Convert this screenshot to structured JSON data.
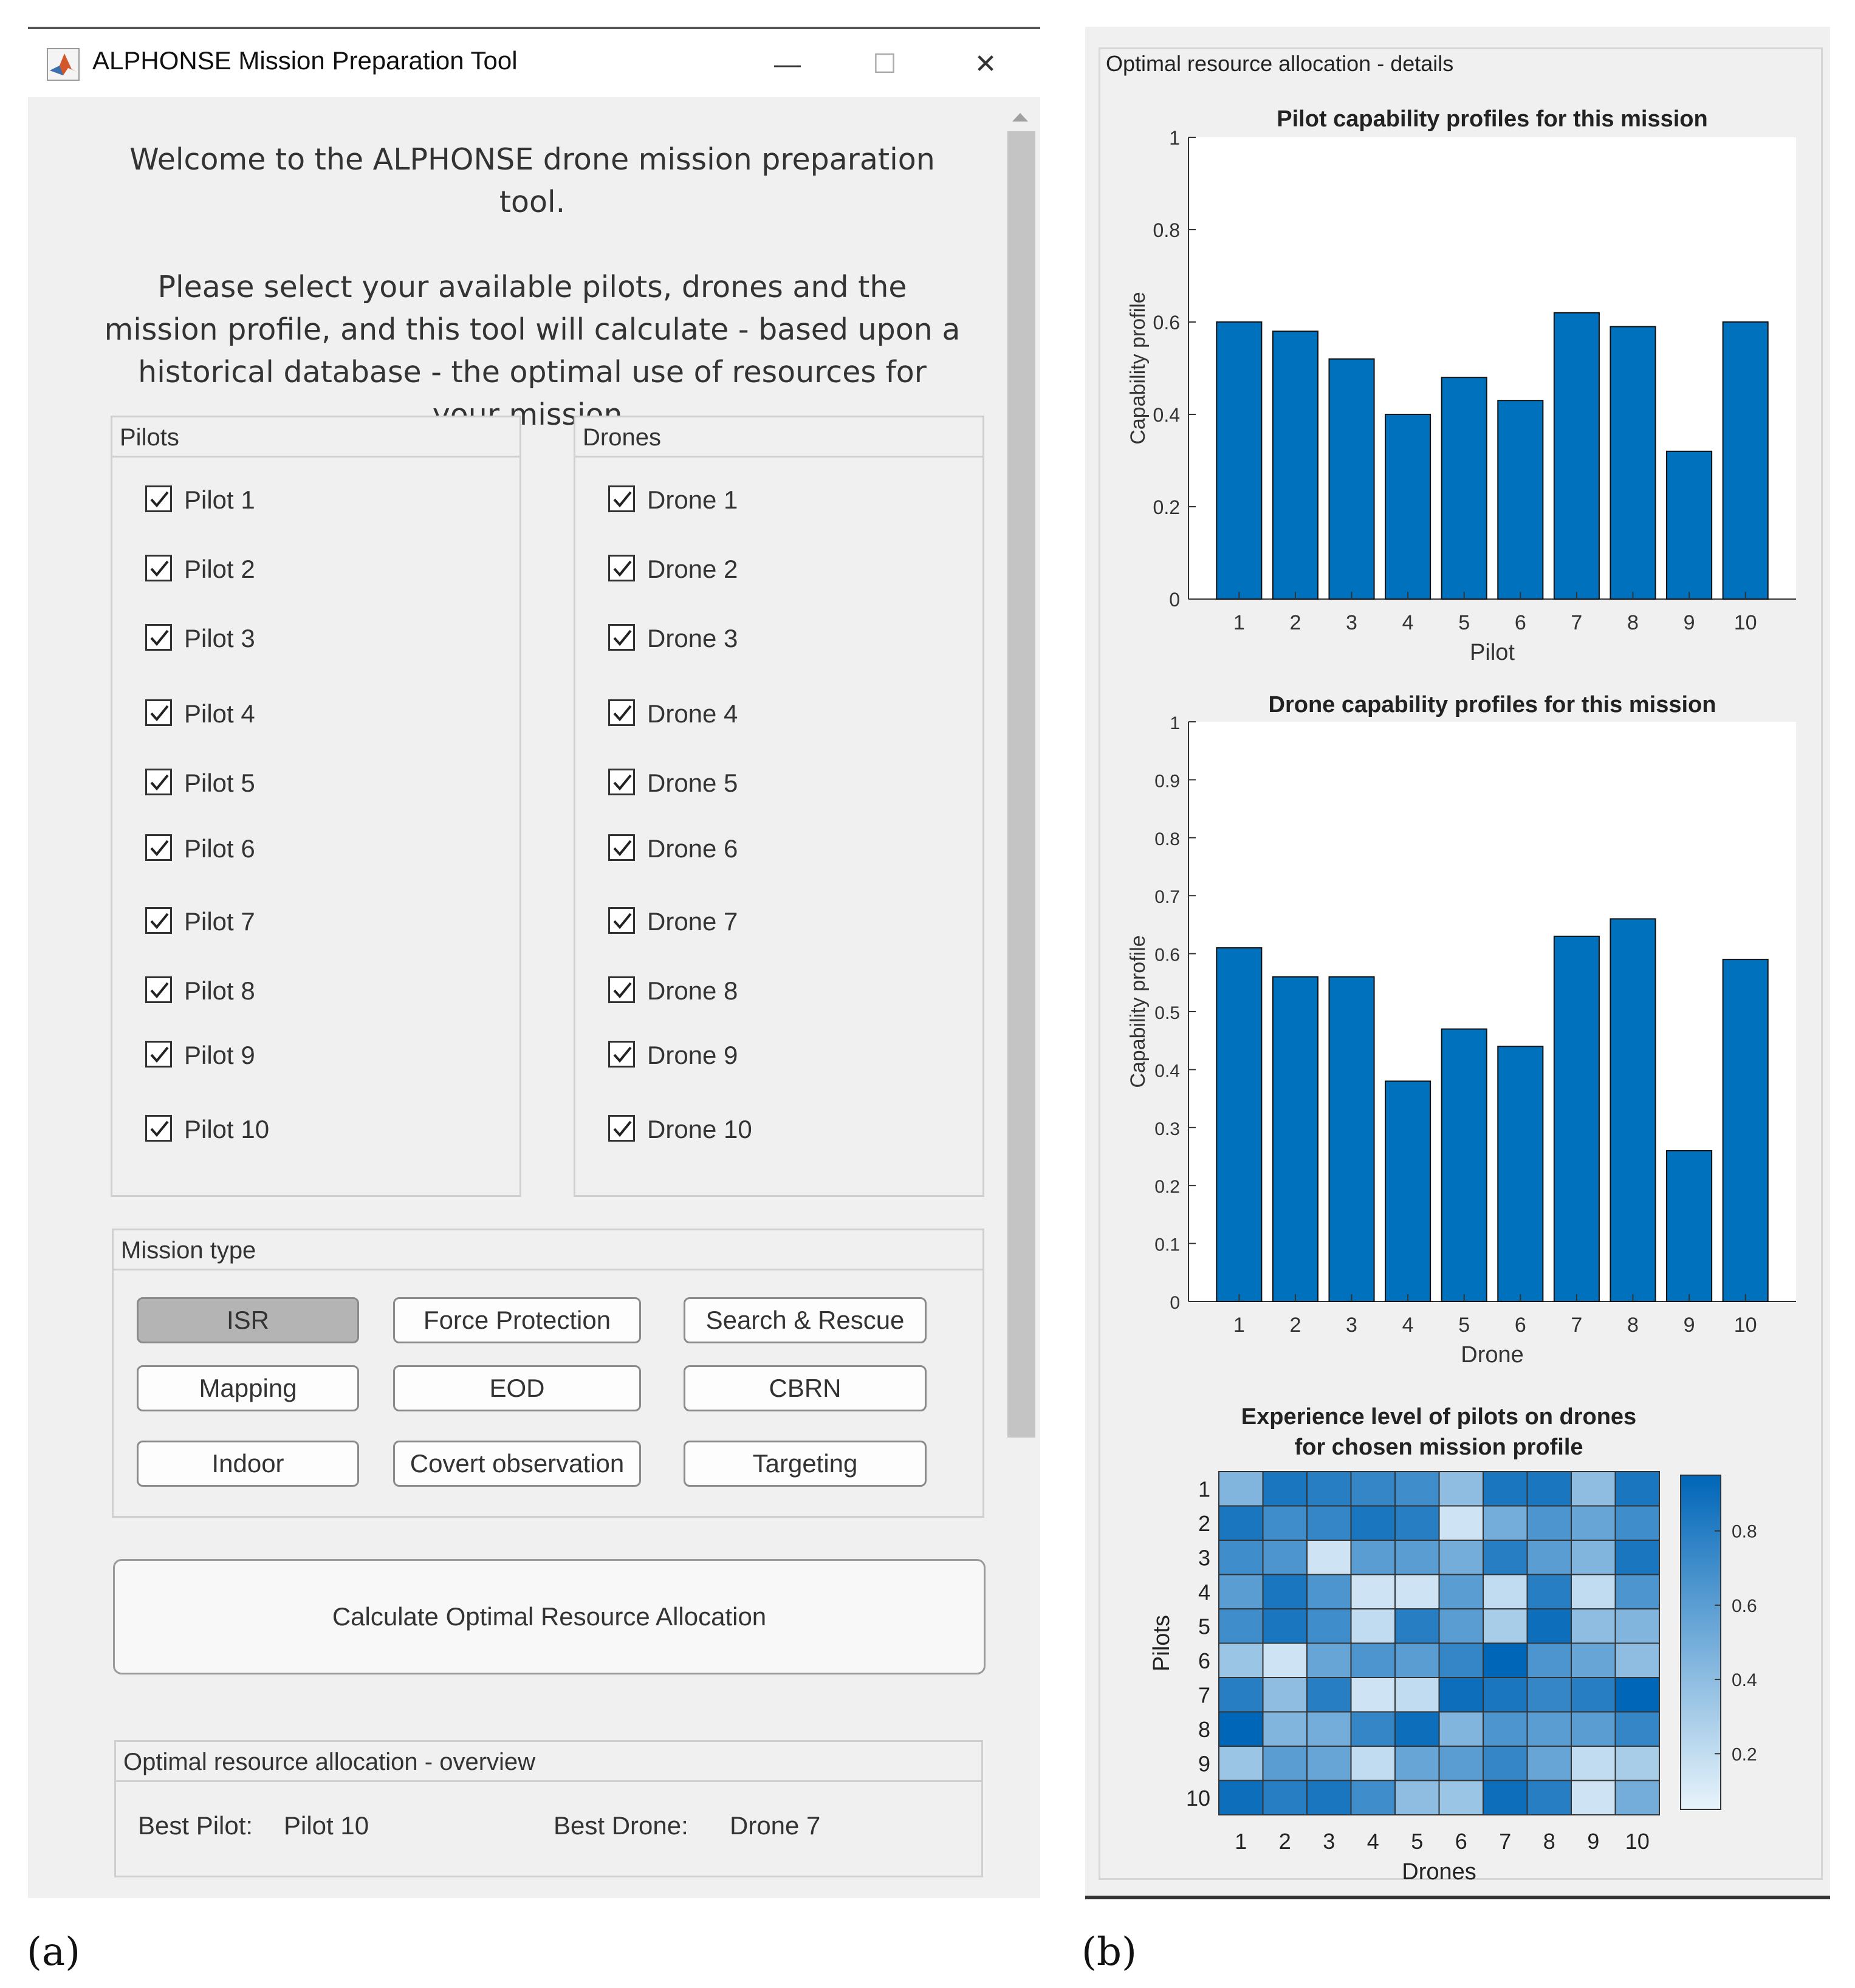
{
  "app": {
    "title": "ALPHONSE Mission Preparation Tool",
    "window_controls": {
      "minimize": "—",
      "maximize": "☐",
      "close": "✕"
    },
    "welcome_line1": "Welcome to the ALPHONSE drone mission preparation tool.",
    "welcome_line2": "Please select your available pilots, drones and the mission profile, and this tool will calculate - based upon a historical database - the optimal use of resources for your mission."
  },
  "pilots": {
    "title": "Pilots",
    "items": [
      {
        "label": "Pilot 1",
        "checked": true
      },
      {
        "label": "Pilot 2",
        "checked": true
      },
      {
        "label": "Pilot 3",
        "checked": true
      },
      {
        "label": "Pilot 4",
        "checked": true
      },
      {
        "label": "Pilot 5",
        "checked": true
      },
      {
        "label": "Pilot 6",
        "checked": true
      },
      {
        "label": "Pilot 7",
        "checked": true
      },
      {
        "label": "Pilot 8",
        "checked": true
      },
      {
        "label": "Pilot 9",
        "checked": true
      },
      {
        "label": "Pilot 10",
        "checked": true
      }
    ]
  },
  "drones": {
    "title": "Drones",
    "items": [
      {
        "label": "Drone 1",
        "checked": true
      },
      {
        "label": "Drone 2",
        "checked": true
      },
      {
        "label": "Drone 3",
        "checked": true
      },
      {
        "label": "Drone 4",
        "checked": true
      },
      {
        "label": "Drone 5",
        "checked": true
      },
      {
        "label": "Drone 6",
        "checked": true
      },
      {
        "label": "Drone 7",
        "checked": true
      },
      {
        "label": "Drone 8",
        "checked": true
      },
      {
        "label": "Drone 9",
        "checked": true
      },
      {
        "label": "Drone 10",
        "checked": true
      }
    ]
  },
  "mission": {
    "title": "Mission type",
    "selected": "ISR",
    "buttons": [
      "ISR",
      "Force Protection",
      "Search & Rescue",
      "Mapping",
      "EOD",
      "CBRN",
      "Indoor",
      "Covert observation",
      "Targeting"
    ]
  },
  "calculate_label": "Calculate Optimal Resource Allocation",
  "overview": {
    "title": "Optimal resource allocation - overview",
    "best_pilot_label": "Best Pilot:",
    "best_pilot_value": "Pilot 10",
    "best_drone_label": "Best Drone:",
    "best_drone_value": "Drone 7"
  },
  "details": {
    "title": "Optimal resource allocation - details"
  },
  "captions": {
    "a": "(a)",
    "b": "(b)"
  },
  "colors": {
    "bar": "#0072bd",
    "heat_low": "#e8f4fb",
    "heat_high": "#0066b8",
    "window_bg": "#f0f0f0"
  },
  "chart_data": [
    {
      "type": "bar",
      "title": "Pilot capability profiles for this mission",
      "xlabel": "Pilot",
      "ylabel": "Capability profile",
      "categories": [
        "1",
        "2",
        "3",
        "4",
        "5",
        "6",
        "7",
        "8",
        "9",
        "10"
      ],
      "values": [
        0.6,
        0.58,
        0.52,
        0.4,
        0.48,
        0.43,
        0.62,
        0.59,
        0.32,
        0.6
      ],
      "ylim": [
        0,
        1
      ],
      "yticks": [
        "0",
        "0.2",
        "0.4",
        "0.6",
        "0.8",
        "1"
      ]
    },
    {
      "type": "bar",
      "title": "Drone capability profiles for this mission",
      "xlabel": "Drone",
      "ylabel": "Capability profile",
      "categories": [
        "1",
        "2",
        "3",
        "4",
        "5",
        "6",
        "7",
        "8",
        "9",
        "10"
      ],
      "values": [
        0.61,
        0.56,
        0.56,
        0.38,
        0.47,
        0.44,
        0.63,
        0.66,
        0.26,
        0.59
      ],
      "ylim": [
        0,
        1
      ],
      "yticks": [
        "0",
        "0.1",
        "0.2",
        "0.3",
        "0.4",
        "0.5",
        "0.6",
        "0.7",
        "0.8",
        "0.9",
        "1"
      ]
    },
    {
      "type": "heatmap",
      "title_line1": "Experience level of pilots on drones",
      "title_line2": "for chosen mission profile",
      "xlabel": "Drones",
      "ylabel": "Pilots",
      "x": [
        "1",
        "2",
        "3",
        "4",
        "5",
        "6",
        "7",
        "8",
        "9",
        "10"
      ],
      "y": [
        "1",
        "2",
        "3",
        "4",
        "5",
        "6",
        "7",
        "8",
        "9",
        "10"
      ],
      "clim": [
        0.05,
        0.95
      ],
      "colorbar_ticks": [
        "0.2",
        "0.4",
        "0.6",
        "0.8"
      ],
      "values": [
        [
          0.45,
          0.85,
          0.8,
          0.75,
          0.7,
          0.4,
          0.85,
          0.85,
          0.4,
          0.85
        ],
        [
          0.85,
          0.7,
          0.75,
          0.85,
          0.8,
          0.15,
          0.5,
          0.65,
          0.55,
          0.7
        ],
        [
          0.7,
          0.65,
          0.15,
          0.6,
          0.6,
          0.5,
          0.8,
          0.6,
          0.45,
          0.85
        ],
        [
          0.6,
          0.85,
          0.65,
          0.15,
          0.15,
          0.6,
          0.2,
          0.8,
          0.2,
          0.65
        ],
        [
          0.7,
          0.85,
          0.7,
          0.2,
          0.8,
          0.6,
          0.3,
          0.9,
          0.4,
          0.45
        ],
        [
          0.35,
          0.15,
          0.55,
          0.65,
          0.6,
          0.75,
          0.95,
          0.65,
          0.55,
          0.4
        ],
        [
          0.8,
          0.4,
          0.8,
          0.15,
          0.2,
          0.9,
          0.85,
          0.75,
          0.8,
          0.95
        ],
        [
          0.95,
          0.45,
          0.5,
          0.75,
          0.9,
          0.45,
          0.65,
          0.6,
          0.6,
          0.75
        ],
        [
          0.35,
          0.6,
          0.55,
          0.2,
          0.55,
          0.6,
          0.75,
          0.55,
          0.2,
          0.3
        ],
        [
          0.9,
          0.8,
          0.85,
          0.7,
          0.4,
          0.35,
          0.9,
          0.8,
          0.15,
          0.5
        ]
      ]
    }
  ]
}
